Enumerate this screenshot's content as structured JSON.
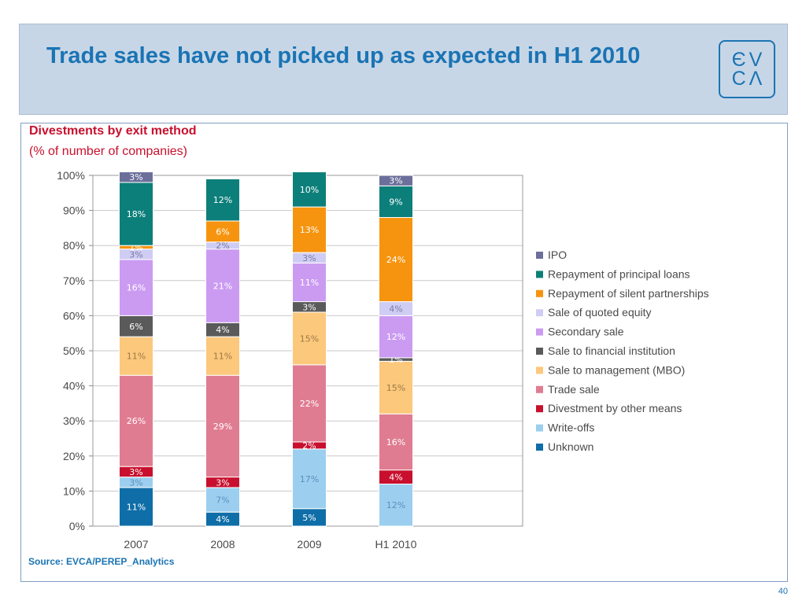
{
  "slide": {
    "title": "Trade sales have not picked up as expected in H1 2010",
    "page_number": "40",
    "source": "Source: EVCA/PEREP_Analytics",
    "logo_top": "ЄV",
    "logo_bottom": "CΛ"
  },
  "chart_data": {
    "type": "bar",
    "stacked": true,
    "title": "Divestments by exit method",
    "subtitle": "(% of number of companies)",
    "categories": [
      "2007",
      "2008",
      "2009",
      "H1 2010"
    ],
    "ylim": [
      0,
      100
    ],
    "yticks": [
      "0%",
      "10%",
      "20%",
      "30%",
      "40%",
      "50%",
      "60%",
      "70%",
      "80%",
      "90%",
      "100%"
    ],
    "legend_position": "right",
    "series": [
      {
        "name": "Unknown",
        "color": "#0f6ea8",
        "label_color": "#ffffff",
        "values": [
          11,
          4,
          5,
          0
        ],
        "labels": [
          "11%",
          "4%",
          "5%",
          ""
        ]
      },
      {
        "name": "Write-offs",
        "color": "#9ccfef",
        "label_color": "#5a8fbf",
        "values": [
          3,
          7,
          17,
          12
        ],
        "labels": [
          "3%",
          "7%",
          "17%",
          "12%"
        ]
      },
      {
        "name": "Divestment by other means",
        "color": "#c8102e",
        "label_color": "#ffffff",
        "values": [
          3,
          3,
          2,
          4
        ],
        "labels": [
          "3%",
          "3%",
          "2%",
          "4%"
        ]
      },
      {
        "name": "Trade sale",
        "color": "#e07c91",
        "label_color": "#ffffff",
        "values": [
          26,
          29,
          22,
          16
        ],
        "labels": [
          "26%",
          "29%",
          "22%",
          "16%"
        ]
      },
      {
        "name": "Sale to management (MBO)",
        "color": "#fcc87c",
        "label_color": "#9c7a46",
        "values": [
          11,
          11,
          15,
          15
        ],
        "labels": [
          "11%",
          "11%",
          "15%",
          "15%"
        ]
      },
      {
        "name": "Sale to financial institution",
        "color": "#5a5a5a",
        "label_color": "#ffffff",
        "values": [
          6,
          4,
          3,
          1
        ],
        "labels": [
          "6%",
          "4%",
          "3%",
          "1%"
        ]
      },
      {
        "name": "Secondary sale",
        "color": "#cb9bf2",
        "label_color": "#ffffff",
        "values": [
          16,
          21,
          11,
          12
        ],
        "labels": [
          "16%",
          "21%",
          "11%",
          "12%"
        ]
      },
      {
        "name": "Sale of quoted equity",
        "color": "#cfcdf3",
        "label_color": "#7b7aa8",
        "values": [
          3,
          2,
          3,
          4
        ],
        "labels": [
          "3%",
          "2%",
          "3%",
          "4%"
        ]
      },
      {
        "name": "Repayment of silent partnerships",
        "color": "#f7940f",
        "label_color": "#ffffff",
        "values": [
          1,
          6,
          13,
          24
        ],
        "labels": [
          "1%",
          "6%",
          "13%",
          "24%"
        ]
      },
      {
        "name": "Repayment of principal loans",
        "color": "#0d7f7a",
        "label_color": "#ffffff",
        "values": [
          18,
          12,
          10,
          9
        ],
        "labels": [
          "18%",
          "12%",
          "10%",
          "9%"
        ]
      },
      {
        "name": "IPO",
        "color": "#6b6f9a",
        "label_color": "#ffffff",
        "values": [
          3,
          0,
          0,
          3
        ],
        "labels": [
          "3%",
          "",
          "",
          "3%"
        ]
      }
    ]
  }
}
